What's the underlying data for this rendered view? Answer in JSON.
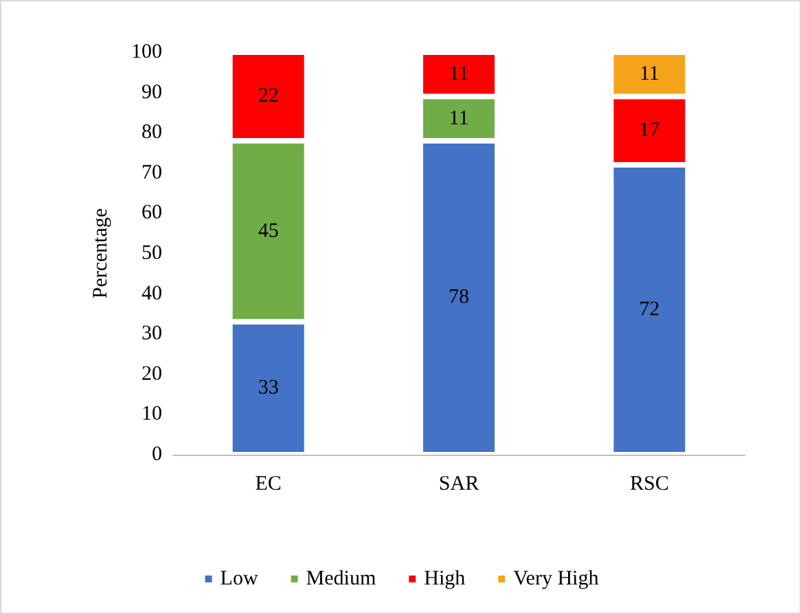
{
  "chart_data": {
    "type": "bar",
    "stacked": true,
    "ylabel": "Percentage",
    "categories": [
      "EC",
      "SAR",
      "RSC"
    ],
    "series": [
      {
        "name": "Low",
        "color": "#4472c4",
        "values": [
          33,
          78,
          72
        ]
      },
      {
        "name": "Medium",
        "color": "#70ad47",
        "values": [
          45,
          11,
          null
        ]
      },
      {
        "name": "High",
        "color": "#ff0000",
        "values": [
          22,
          11,
          17
        ]
      },
      {
        "name": "Very High",
        "color": "#f5a31a",
        "values": [
          null,
          null,
          11
        ]
      }
    ],
    "ylim": [
      0,
      100
    ],
    "yticks": [
      0,
      10,
      20,
      30,
      40,
      50,
      60,
      70,
      80,
      90,
      100
    ],
    "data_labels": true,
    "legend": "bottom",
    "grid": false
  }
}
